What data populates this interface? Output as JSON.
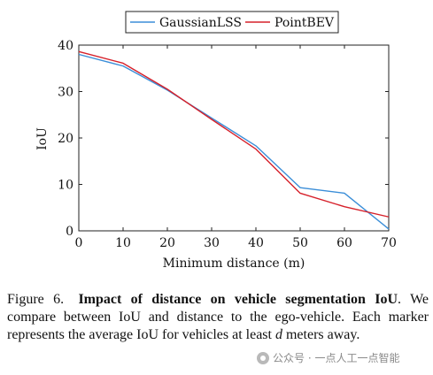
{
  "chart_data": {
    "type": "line",
    "x": [
      0,
      10,
      20,
      30,
      40,
      50,
      60,
      70
    ],
    "series": [
      {
        "name": "GaussianLSS",
        "color": "#3b8ed8",
        "values": [
          38.0,
          35.5,
          30.3,
          24.3,
          18.3,
          9.3,
          8.1,
          0.4
        ]
      },
      {
        "name": "PointBEV",
        "color": "#d6202a",
        "values": [
          38.6,
          36.1,
          30.5,
          24.0,
          17.6,
          8.1,
          5.2,
          3.0
        ]
      }
    ],
    "xlabel": "Minimum distance (m)",
    "ylabel": "IoU",
    "xlim": [
      0,
      70
    ],
    "ylim": [
      0,
      40
    ],
    "xticks": [
      "0",
      "10",
      "20",
      "30",
      "40",
      "50",
      "60",
      "70"
    ],
    "yticks": [
      "0",
      "10",
      "20",
      "30",
      "40"
    ],
    "grid": false,
    "legend_position": "top-center"
  },
  "caption": {
    "number": "Figure 6.",
    "title": "Impact of distance on vehicle segmentation IoU",
    "period": ".",
    "text_before_var": " We compare between IoU and distance to the ego-vehicle. Each marker represents the average IoU for vehicles at least ",
    "variable": "d",
    "text_after_var": " meters away."
  },
  "watermark": {
    "text": "公众号 · 一点人工一点智能"
  }
}
